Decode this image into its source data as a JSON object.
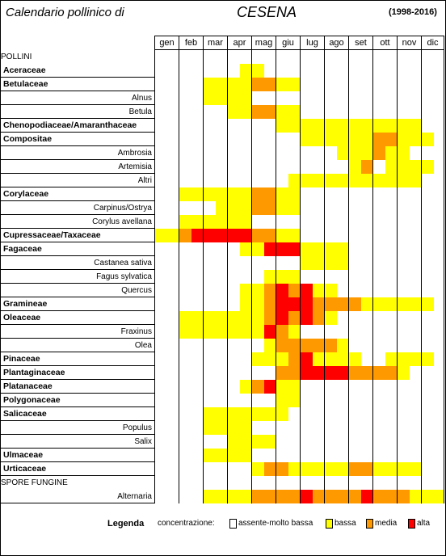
{
  "header": {
    "title_left": "Calendario pollinico di",
    "city": "CESENA",
    "years": "(1998-2016)"
  },
  "colors": {
    "0": "#ffffff",
    "1": "#ffff00",
    "2": "#ff9900",
    "3": "#ff0000"
  },
  "months": [
    "gen",
    "feb",
    "mar",
    "apr",
    "mag",
    "giu",
    "lug",
    "ago",
    "set",
    "ott",
    "nov",
    "dic"
  ],
  "rows": [
    {
      "label": "POLLINI",
      "type": "section",
      "cells": ""
    },
    {
      "label": "Aceraceae",
      "type": "main",
      "cells": "000000011000000000000000"
    },
    {
      "label": "Betulaceae",
      "type": "main",
      "cells": "000011112211000000000000"
    },
    {
      "label": "Alnus",
      "type": "sub",
      "cells": "000011110000000000000000"
    },
    {
      "label": "Betula",
      "type": "sub",
      "cells": "000000112211000000000000"
    },
    {
      "label": "Chenopodiaceae/Amaranthaceae",
      "type": "main",
      "cells": "000000000011111111111100"
    },
    {
      "label": "Compositae",
      "type": "main",
      "cells": "000000000000111111221110"
    },
    {
      "label": "Ambrosia",
      "type": "sub",
      "cells": "000000000000000111211000"
    },
    {
      "label": "Artemisia",
      "type": "sub",
      "cells": "000000000000000012011110"
    },
    {
      "label": "Altri",
      "type": "sub",
      "cells": "000000000001111111111100"
    },
    {
      "label": "Corylaceae",
      "type": "main",
      "cells": "001111112211000000000000"
    },
    {
      "label": "Carpinus/Ostrya",
      "type": "sub",
      "cells": "000001112211000000000000"
    },
    {
      "label": "Corylus avellana",
      "type": "sub",
      "cells": "001111110000000000000000"
    },
    {
      "label": "Cupressaceae/Taxaceae",
      "type": "main",
      "cells": "112333332211000000000000"
    },
    {
      "label": "Fagaceae",
      "type": "main",
      "cells": "000000011333111100000000"
    },
    {
      "label": "Castanea sativa",
      "type": "sub",
      "cells": "000000000000111100000000"
    },
    {
      "label": "Fagus sylvatica",
      "type": "sub",
      "cells": "000000000111000000000000"
    },
    {
      "label": "Quercus",
      "type": "sub",
      "cells": "000000011232311000000000"
    },
    {
      "label": "Gramineae",
      "type": "main",
      "cells": "000000011233322221111110"
    },
    {
      "label": "Oleaceae",
      "type": "main",
      "cells": "001111111232321000000000"
    },
    {
      "label": "Fraxinus",
      "type": "sub",
      "cells": "001111111321000000000000"
    },
    {
      "label": "Olea",
      "type": "sub",
      "cells": "000000000122222100000000"
    },
    {
      "label": "Pinaceae",
      "type": "main",
      "cells": "000000001112311110011110"
    },
    {
      "label": "Plantaginaceae",
      "type": "main",
      "cells": "000000000022333322221000"
    },
    {
      "label": "Platanaceae",
      "type": "main",
      "cells": "000000012311000000000000"
    },
    {
      "label": "Polygonaceae",
      "type": "main",
      "cells": "000000000011000000000000"
    },
    {
      "label": "Salicaceae",
      "type": "main",
      "cells": "000011111110000000000000"
    },
    {
      "label": "Populus",
      "type": "sub",
      "cells": "000011110000000000000000"
    },
    {
      "label": "Salix",
      "type": "sub",
      "cells": "000000111100000000000000"
    },
    {
      "label": "Ulmaceae",
      "type": "main",
      "cells": "000011110000000000000000"
    },
    {
      "label": "Urticaceae",
      "type": "main",
      "cells": "000000001221111122111100"
    },
    {
      "label": "SPORE FUNGINE",
      "type": "section",
      "cells": ""
    },
    {
      "label": "Alternaria",
      "type": "sub",
      "cells": "000011112222322223222111"
    }
  ],
  "legend": {
    "title": "Legenda",
    "subtitle": "concentrazione:",
    "items": [
      {
        "label": "assente-molto bassa",
        "level": "0"
      },
      {
        "label": "bassa",
        "level": "1"
      },
      {
        "label": "media",
        "level": "2"
      },
      {
        "label": "alta",
        "level": "3"
      }
    ]
  }
}
